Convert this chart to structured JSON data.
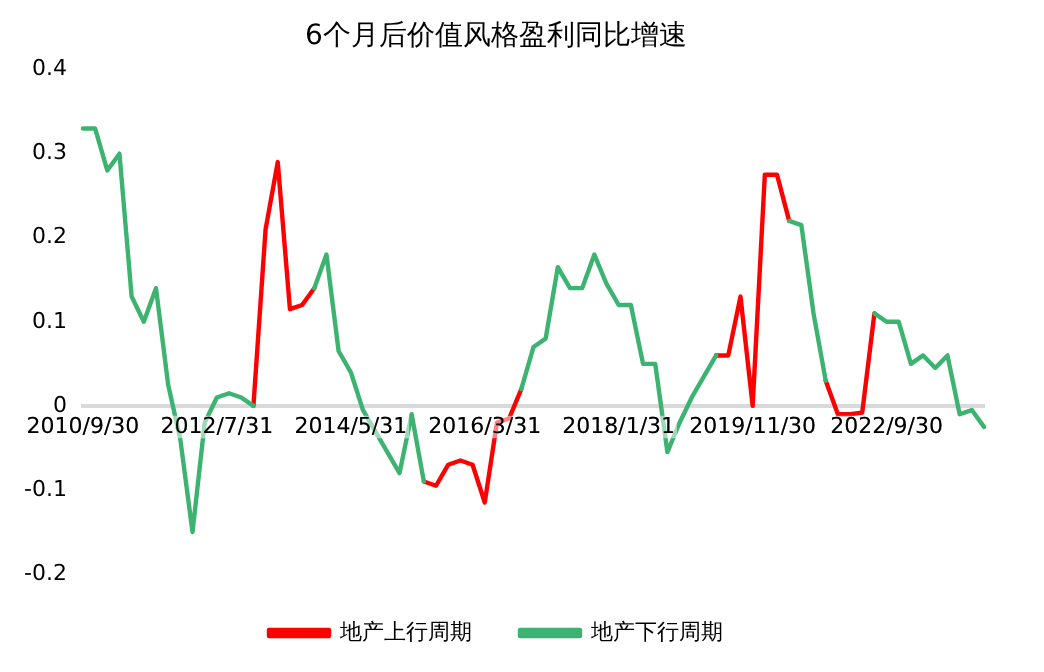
{
  "chart_data": {
    "type": "line",
    "title": "6个月后价值风格盈利同比增速",
    "categories": [
      "2010/9/30",
      null,
      null,
      null,
      null,
      null,
      null,
      null,
      null,
      null,
      null,
      "2012/7/31",
      null,
      null,
      null,
      null,
      null,
      null,
      null,
      null,
      null,
      null,
      "2014/5/31",
      null,
      null,
      null,
      null,
      null,
      null,
      null,
      null,
      null,
      null,
      "2016/3/31",
      null,
      null,
      null,
      null,
      null,
      null,
      null,
      null,
      null,
      null,
      "2018/1/31",
      null,
      null,
      null,
      null,
      null,
      null,
      null,
      null,
      null,
      null,
      "2019/11/30",
      null,
      null,
      null,
      null,
      null,
      null,
      null,
      null,
      null,
      null,
      "2022/9/30",
      null,
      null,
      null,
      null,
      null,
      null,
      null,
      null
    ],
    "series": [
      {
        "name": "地产上行周期",
        "color": "#ff0000",
        "values": [
          null,
          null,
          null,
          null,
          null,
          null,
          null,
          null,
          null,
          null,
          null,
          null,
          null,
          null,
          0.0,
          0.21,
          0.29,
          0.115,
          0.12,
          0.14,
          null,
          null,
          null,
          null,
          null,
          null,
          null,
          null,
          -0.09,
          -0.095,
          -0.07,
          -0.065,
          -0.07,
          -0.115,
          -0.02,
          -0.015,
          0.02,
          null,
          null,
          null,
          null,
          null,
          null,
          null,
          null,
          null,
          null,
          null,
          null,
          null,
          null,
          null,
          0.06,
          0.06,
          0.13,
          0.0,
          0.275,
          0.275,
          0.22,
          null,
          null,
          0.03,
          -0.01,
          -0.01,
          -0.008,
          0.11,
          null,
          null,
          null,
          null,
          null,
          null,
          null,
          null,
          null
        ]
      },
      {
        "name": "地产下行周期",
        "color": "#3cb371",
        "values": [
          0.33,
          0.33,
          0.28,
          0.3,
          0.13,
          0.1,
          0.14,
          0.025,
          -0.04,
          -0.15,
          -0.02,
          0.01,
          0.015,
          0.01,
          0.0,
          null,
          null,
          null,
          null,
          0.14,
          0.18,
          0.065,
          0.04,
          -0.005,
          -0.03,
          -0.055,
          -0.08,
          -0.01,
          -0.09,
          null,
          null,
          null,
          null,
          null,
          null,
          null,
          0.02,
          0.07,
          0.08,
          0.165,
          0.14,
          0.14,
          0.18,
          0.145,
          0.12,
          0.12,
          0.05,
          0.05,
          -0.055,
          -0.02,
          0.01,
          0.035,
          0.06,
          null,
          null,
          null,
          null,
          null,
          0.22,
          0.215,
          0.11,
          0.03,
          null,
          null,
          null,
          0.11,
          0.1,
          0.1,
          0.05,
          0.06,
          0.045,
          0.06,
          -0.01,
          -0.005,
          -0.025
        ]
      }
    ],
    "ylim": [
      -0.2,
      0.4
    ],
    "yticks": [
      -0.2,
      -0.1,
      0,
      0.1,
      0.2,
      0.3,
      0.4
    ],
    "grid": false,
    "legend": "bottom",
    "marker": "none",
    "line_style": "solid"
  }
}
